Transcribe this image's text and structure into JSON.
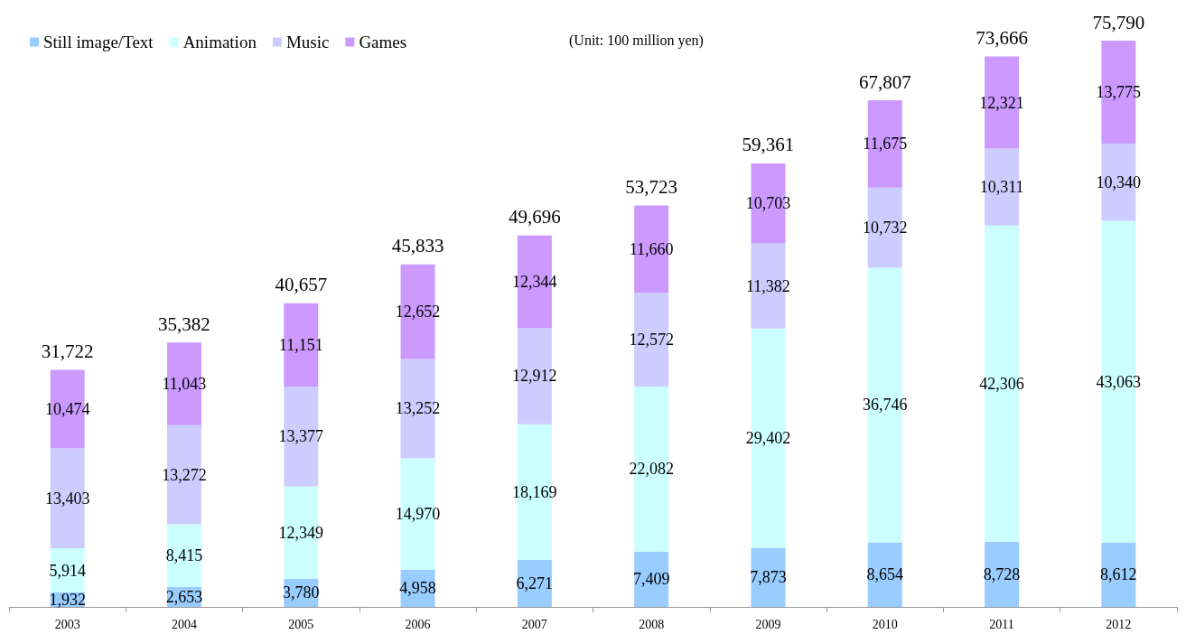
{
  "chart_data": {
    "type": "bar",
    "stacked": true,
    "legend": "top left",
    "categories": [
      "2003",
      "2004",
      "2005",
      "2006",
      "2007",
      "2008",
      "2009",
      "2010",
      "2011",
      "2012"
    ],
    "series": [
      {
        "name": "Still image/Text",
        "color": "#99ccff",
        "values": [
          1932,
          2653,
          3780,
          4958,
          6271,
          7409,
          7873,
          8654,
          8728,
          8612
        ],
        "value_labels": [
          "1,932",
          "2,653",
          "3,780",
          "4,958",
          "6,271",
          "7,409",
          "7,873",
          "8,654",
          "8,728",
          "8,612"
        ]
      },
      {
        "name": "Animation",
        "color": "#ccffff",
        "values": [
          5914,
          8415,
          12349,
          14970,
          18169,
          22082,
          29402,
          36746,
          42306,
          43063
        ],
        "value_labels": [
          "5,914",
          "8,415",
          "12,349",
          "14,970",
          "18,169",
          "22,082",
          "29,402",
          "36,746",
          "42,306",
          "43,063"
        ]
      },
      {
        "name": "Music",
        "color": "#ccccff",
        "values": [
          13403,
          13272,
          13377,
          13252,
          12912,
          12572,
          11382,
          10732,
          10311,
          10340
        ],
        "value_labels": [
          "13,403",
          "13,272",
          "13,377",
          "13,252",
          "12,912",
          "12,572",
          "11,382",
          "10,732",
          "10,311",
          "10,340"
        ]
      },
      {
        "name": "Games",
        "color": "#cc99ff",
        "values": [
          10474,
          11043,
          11151,
          12652,
          12344,
          11660,
          10703,
          11675,
          12321,
          13775
        ],
        "value_labels": [
          "10,474",
          "11,043",
          "11,151",
          "12,652",
          "12,344",
          "11,660",
          "10,703",
          "11,675",
          "12,321",
          "13,775"
        ]
      }
    ],
    "totals": [
      "31,722",
      "35,382",
      "40,657",
      "45,833",
      "49,696",
      "53,723",
      "59,361",
      "67,807",
      "73,666",
      "75,790"
    ],
    "annotations": [
      "(Unit: 100 million yen)"
    ]
  }
}
